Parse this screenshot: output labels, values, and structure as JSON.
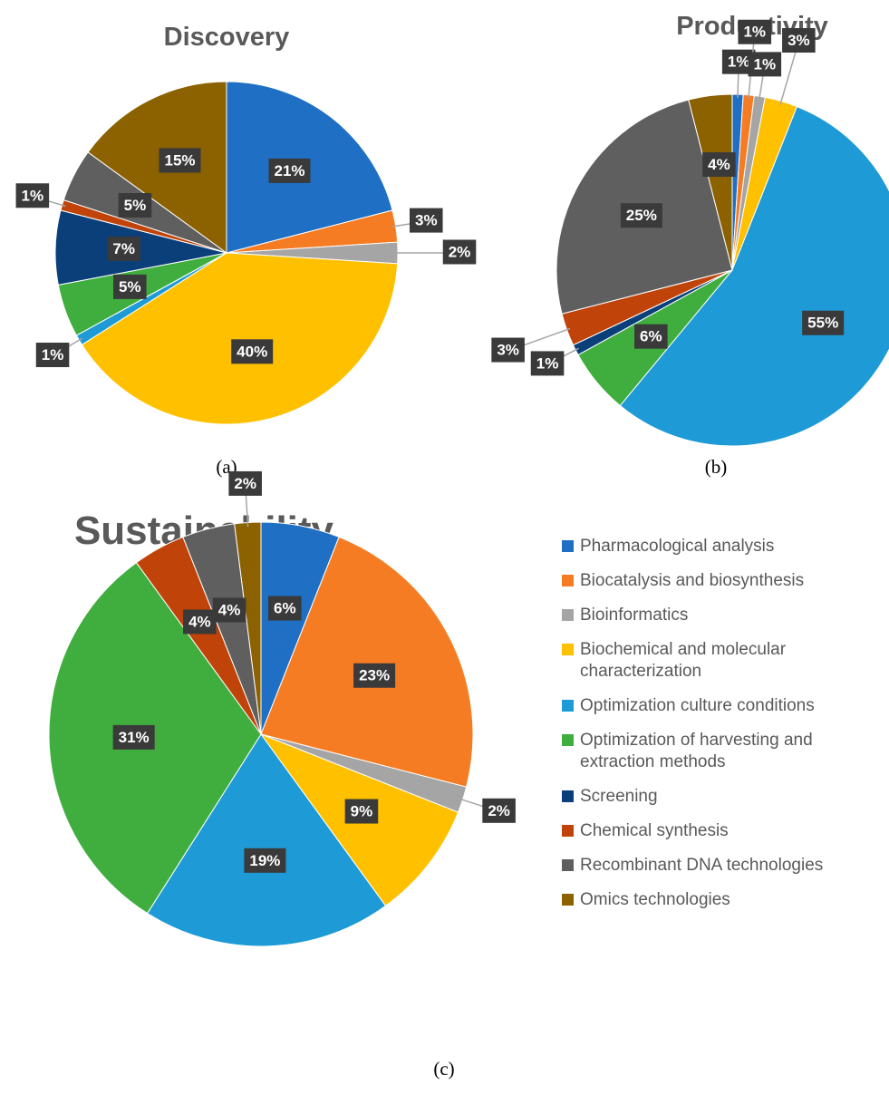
{
  "legend": {
    "categories": [
      "Pharmacological analysis",
      "Biocatalysis and biosynthesis",
      "Bioinformatics",
      "Biochemical and molecular characterization",
      "Optimization culture conditions",
      "Optimization of harvesting and extraction methods",
      "Screening",
      "Chemical synthesis",
      "Recombinant DNA technologies",
      "Omics technologies"
    ],
    "colors": [
      "#1f6fc5",
      "#f57c22",
      "#a5a5a5",
      "#ffc000",
      "#1e9ad6",
      "#3fae3f",
      "#0a3f7a",
      "#c0440a",
      "#5f5f5f",
      "#8c6100"
    ]
  },
  "chart_data": [
    {
      "type": "pie",
      "title": "Discovery",
      "caption": "(a)",
      "values": [
        21,
        3,
        2,
        40,
        1,
        5,
        7,
        1,
        5,
        15
      ],
      "value_labels": [
        "21%",
        "3%",
        "2%",
        "40%",
        "1%",
        "5%",
        "7%",
        "1%",
        "5%",
        "15%"
      ]
    },
    {
      "type": "pie",
      "title": "Productivity",
      "caption": "(b)",
      "values": [
        1,
        1,
        1,
        3,
        55,
        6,
        1,
        3,
        25,
        4
      ],
      "value_labels": [
        "1%",
        "1%",
        "1%",
        "3%",
        "55%",
        "6%",
        "1%",
        "3%",
        "25%",
        "4%"
      ]
    },
    {
      "type": "pie",
      "title": "Sustainability",
      "caption": "(c)",
      "values": [
        6,
        23,
        2,
        9,
        19,
        31,
        0,
        4,
        4,
        2
      ],
      "value_labels": [
        "6%",
        "23%",
        "2%",
        "9%",
        "19%",
        "31%",
        null,
        "4%",
        "4%",
        "2%"
      ]
    }
  ]
}
